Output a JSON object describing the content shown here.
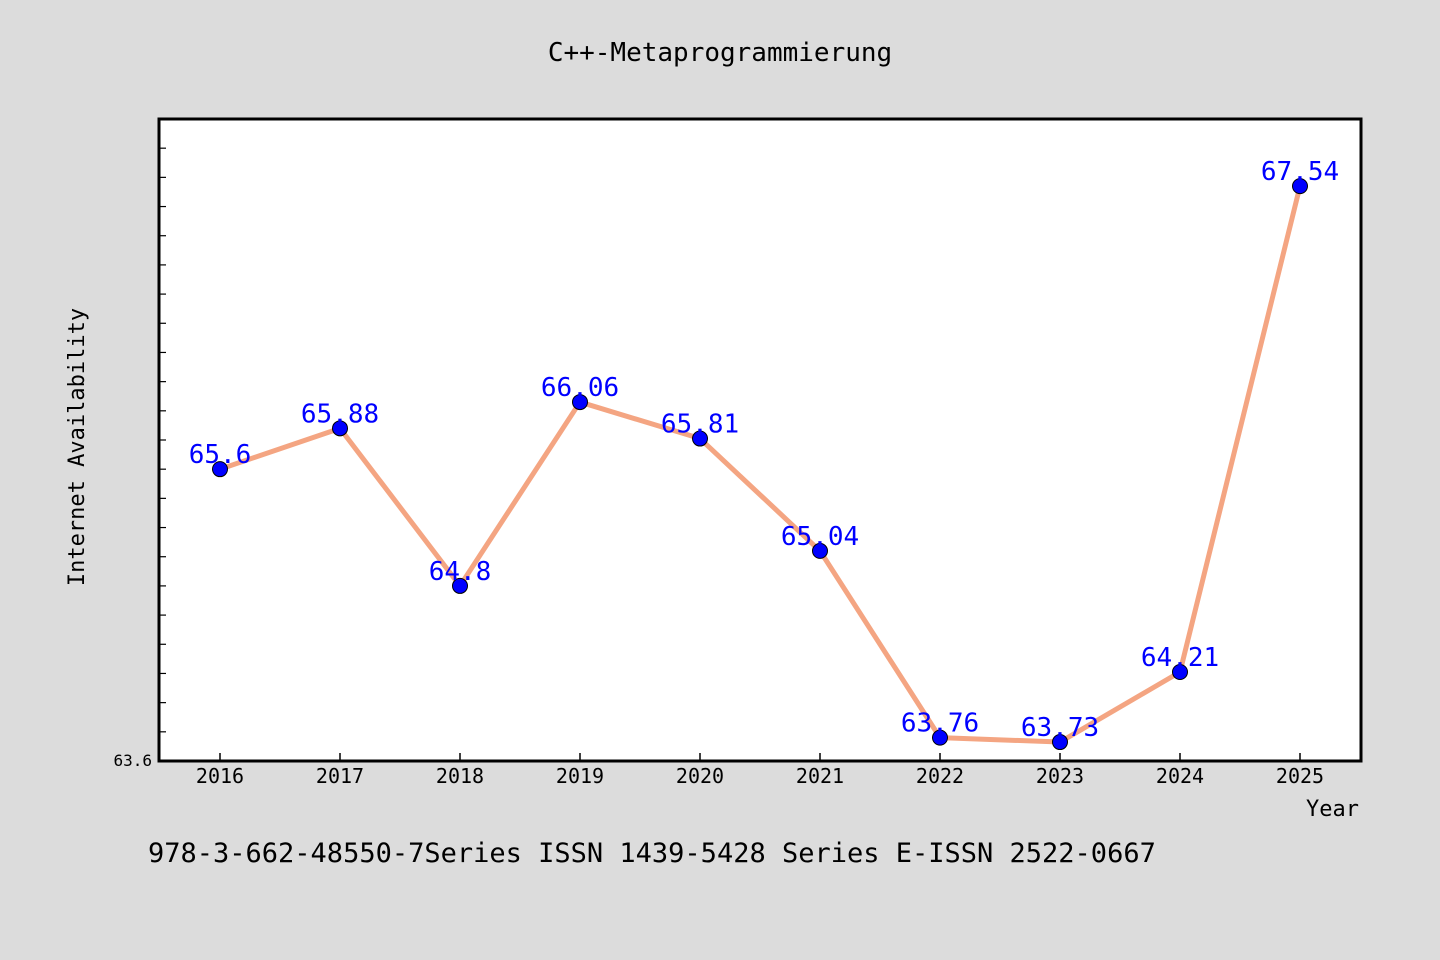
{
  "chart_data": {
    "type": "line",
    "title": "C++-Metaprogrammierung",
    "xlabel": "Year",
    "ylabel": "Internet Availability",
    "categories": [
      "2016",
      "2017",
      "2018",
      "2019",
      "2020",
      "2021",
      "2022",
      "2023",
      "2024",
      "2025"
    ],
    "series": [
      {
        "values": [
          65.6,
          65.88,
          64.8,
          66.06,
          65.81,
          65.04,
          63.76,
          63.73,
          64.21,
          67.54
        ]
      }
    ],
    "data_labels": [
      "65.6",
      "65.88",
      "64.8",
      "66.06",
      "65.81",
      "65.04",
      "63.76",
      "63.73",
      "64.21",
      "67.54"
    ],
    "ylim": [
      63.6,
      68.0
    ],
    "y_min_label": "63.6",
    "line_color": "#f4a582",
    "marker_color": "#0000ff",
    "label_color": "#0000ff",
    "grid": false
  },
  "footer": {
    "text": "978-3-662-48550-7Series ISSN 1439-5428 Series E-ISSN 2522-0667"
  }
}
